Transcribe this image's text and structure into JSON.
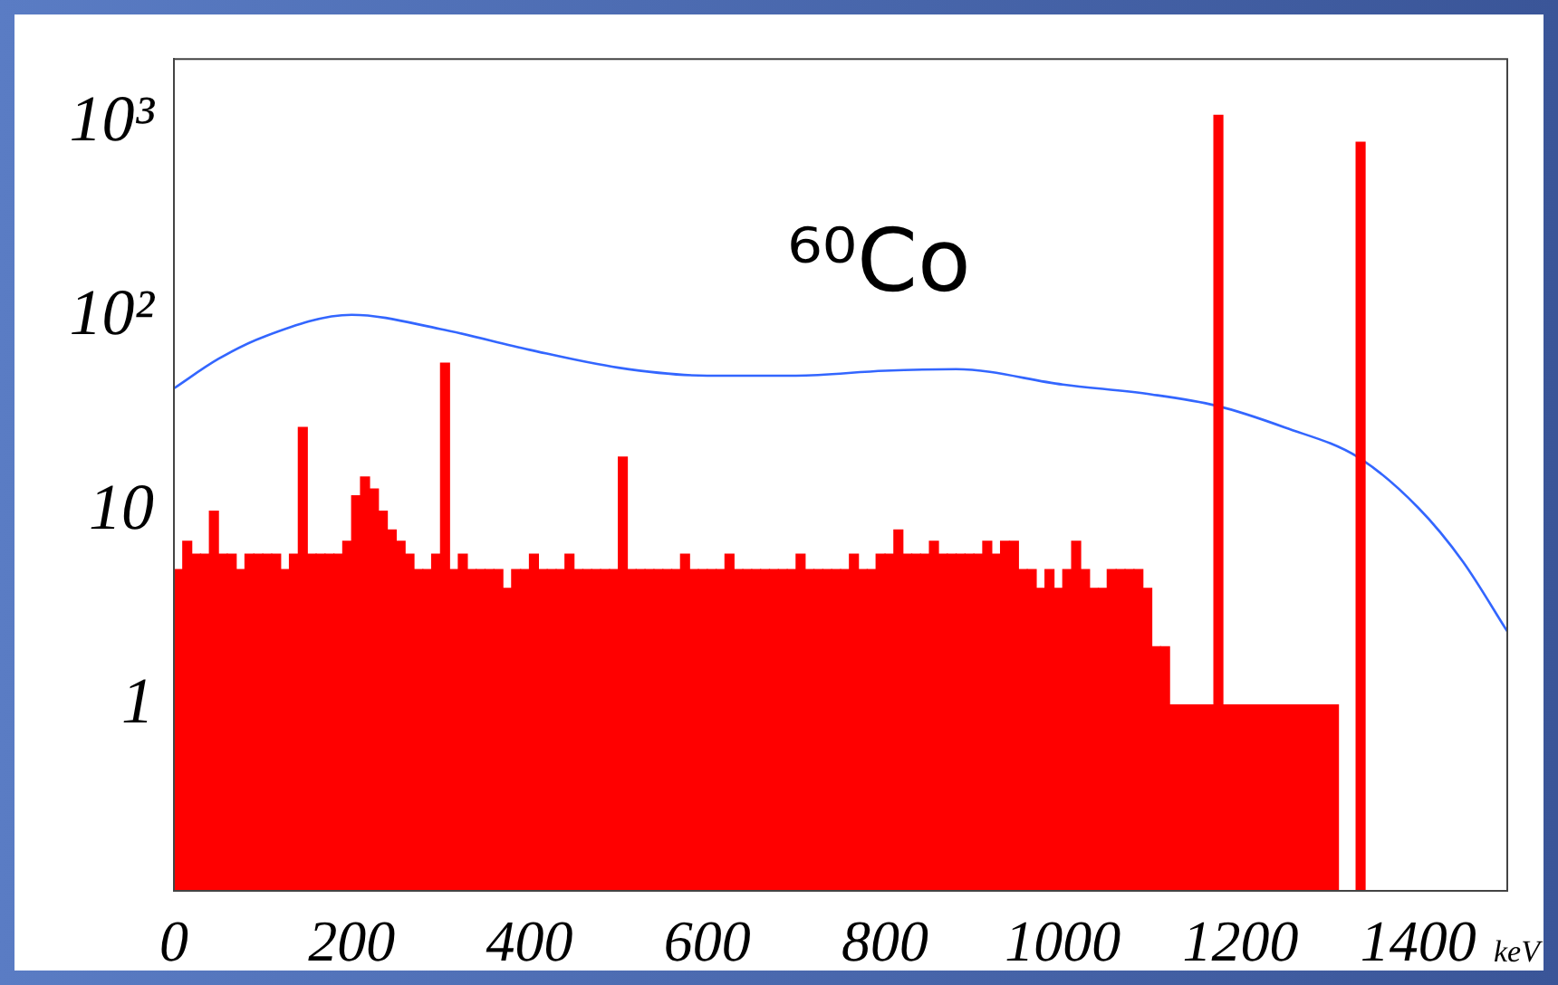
{
  "chart_data": {
    "type": "histogram",
    "xlabel": "keV",
    "annotations": [
      "⁶⁰Co"
    ],
    "bins": [
      0,
      10,
      20,
      30,
      40,
      50,
      60,
      70,
      80,
      90,
      100,
      110,
      120,
      130,
      140,
      150,
      160,
      170,
      180,
      190,
      200,
      210,
      220,
      230,
      240,
      250,
      260,
      270,
      280,
      290,
      300,
      310,
      320,
      330,
      340,
      350,
      360,
      370,
      380,
      390,
      400,
      410,
      420,
      430,
      440,
      450,
      460,
      470,
      480,
      490,
      500,
      510,
      520,
      530,
      540,
      550,
      560,
      570,
      580,
      590,
      600,
      610,
      620,
      630,
      640,
      650,
      660,
      670,
      680,
      690,
      700,
      710,
      720,
      730,
      740,
      750,
      760,
      770,
      780,
      790,
      800,
      810,
      820,
      830,
      840,
      850,
      860,
      870,
      880,
      890,
      900,
      910,
      920,
      930,
      940,
      950,
      960,
      970,
      980,
      990,
      1000,
      1010,
      1020,
      1030,
      1040,
      1050,
      1060,
      1070,
      1080,
      1090,
      1100,
      1110,
      1120,
      1130,
      1140,
      1150,
      1160,
      1170,
      1180,
      1190,
      1200,
      1210,
      1220,
      1230,
      1240,
      1250,
      1260,
      1270,
      1280,
      1290,
      1300,
      1310,
      1320,
      1330,
      1340,
      1350,
      1360,
      1370,
      1380,
      1390,
      1400,
      1410,
      1420,
      1430,
      1440,
      1450,
      1460,
      1470,
      1480,
      1490,
      1500
    ],
    "series": [
      {
        "color": "#ff0000",
        "values": [
          5,
          7,
          6,
          6,
          10,
          6,
          6,
          5,
          6,
          6,
          6,
          6,
          5,
          6,
          27,
          6,
          6,
          6,
          6,
          7,
          12,
          15,
          13,
          10,
          8,
          7,
          6,
          5,
          5,
          6,
          58,
          5,
          6,
          5,
          5,
          5,
          5,
          4,
          5,
          5,
          6,
          5,
          5,
          5,
          6,
          5,
          5,
          5,
          5,
          5,
          19,
          5,
          5,
          5,
          5,
          5,
          5,
          6,
          5,
          5,
          5,
          5,
          6,
          5,
          5,
          5,
          5,
          5,
          5,
          5,
          6,
          5,
          5,
          5,
          5,
          5,
          6,
          5,
          5,
          6,
          6,
          8,
          6,
          6,
          6,
          7,
          6,
          6,
          6,
          6,
          6,
          7,
          6,
          7,
          7,
          5,
          5,
          4,
          5,
          4,
          5,
          7,
          5,
          4,
          4,
          5,
          5,
          5,
          5,
          4,
          2,
          2,
          1,
          1,
          1,
          1,
          1,
          1100,
          1,
          1,
          1,
          1,
          1,
          1,
          1,
          1,
          1,
          1,
          1,
          1,
          1,
          null,
          null,
          800,
          null,
          null,
          null,
          null,
          null,
          null,
          null,
          null,
          null,
          null,
          null,
          null,
          null,
          null,
          null,
          null
        ]
      },
      {
        "type": "line",
        "color": "#3366ff",
        "x": [
          0,
          50,
          100,
          200,
          300,
          400,
          500,
          600,
          700,
          800,
          880,
          1000,
          1100,
          1173,
          1250,
          1332,
          1400,
          1450,
          1500
        ],
        "values": [
          43,
          61,
          79,
          103,
          87,
          68,
          55,
          50,
          50,
          53,
          54,
          45,
          40,
          35,
          27,
          19,
          10.4,
          5.5,
          2.4
        ]
      }
    ],
    "xlim": [
      0,
      1500
    ],
    "xticks": [
      0,
      200,
      400,
      600,
      800,
      1000,
      1200,
      1400
    ],
    "ylim": [
      0.11,
      2150
    ],
    "yticks": [
      1,
      10,
      {
        "value": 100,
        "label": "10²"
      },
      {
        "value": 1000,
        "label": "10³"
      }
    ],
    "log": "y",
    "marker": "none"
  }
}
